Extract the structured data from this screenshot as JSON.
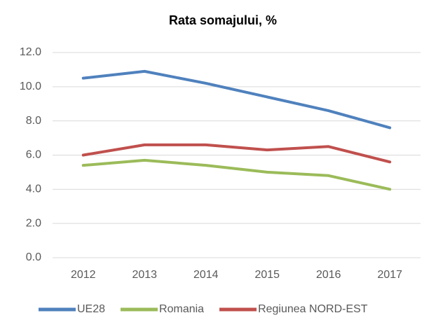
{
  "chart_data": {
    "type": "line",
    "title": "Rata somajului, %",
    "categories": [
      "2012",
      "2013",
      "2014",
      "2015",
      "2016",
      "2017"
    ],
    "series": [
      {
        "name": "UE28",
        "color": "#4f81bd",
        "values": [
          10.5,
          10.9,
          10.2,
          9.4,
          8.6,
          7.6
        ]
      },
      {
        "name": "Romania",
        "color": "#9bbb59",
        "values": [
          5.4,
          5.7,
          5.4,
          5.0,
          4.8,
          4.0
        ]
      },
      {
        "name": "Regiunea NORD-EST",
        "color": "#c0504d",
        "values": [
          6.0,
          6.6,
          6.6,
          6.3,
          6.5,
          5.6
        ]
      }
    ],
    "ylim": [
      0,
      12
    ],
    "yticks": [
      {
        "value": 0,
        "label": "0.0"
      },
      {
        "value": 2,
        "label": "2.0"
      },
      {
        "value": 4,
        "label": "4.0"
      },
      {
        "value": 6,
        "label": "6.0"
      },
      {
        "value": 8,
        "label": "8.0"
      },
      {
        "value": 10,
        "label": "10.0"
      },
      {
        "value": 12,
        "label": "12.0"
      }
    ],
    "grid": true,
    "legend": "bottom"
  }
}
